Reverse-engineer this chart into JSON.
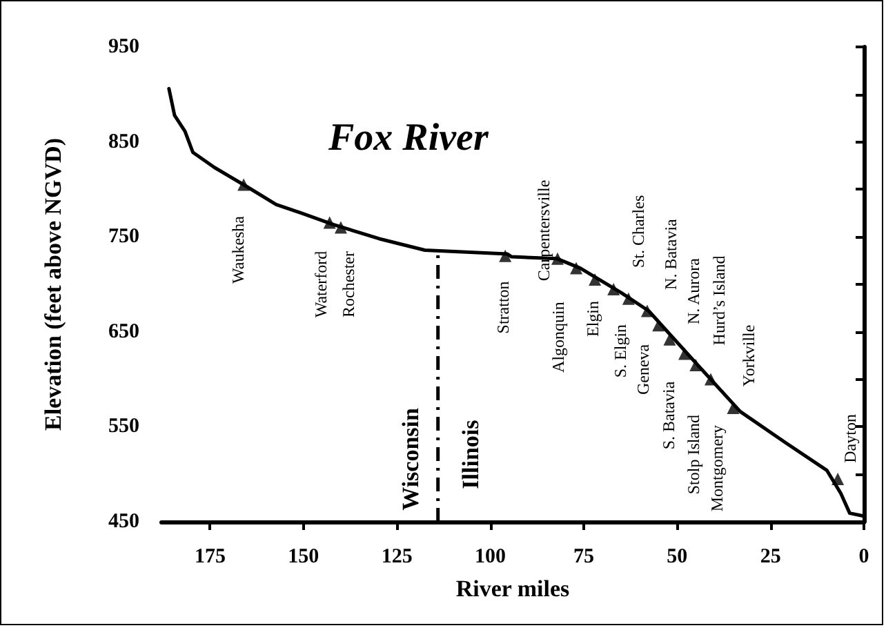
{
  "chart_data": {
    "type": "line",
    "title": "Fox River",
    "xlabel": "River miles",
    "ylabel": "Elevation (feet above NGVD)",
    "xlim": [
      188,
      0
    ],
    "xticks": [
      175,
      150,
      125,
      100,
      75,
      50,
      25,
      0
    ],
    "ylim": [
      450,
      950
    ],
    "yticks": [
      450,
      {
        "value": 500,
        "label": null
      },
      550,
      {
        "value": 600,
        "label": null
      },
      650,
      {
        "value": 700,
        "label": null
      },
      750,
      {
        "value": 800,
        "label": null
      },
      850,
      {
        "value": 900,
        "label": null
      },
      950
    ],
    "series": [
      {
        "color": "#000000",
        "marker": "none",
        "line_style": "solid",
        "x": [
          186,
          184.5,
          181.7,
          179.6,
          173.8,
          165.2,
          157.3,
          150.5,
          142,
          129.7,
          117.5,
          95.5,
          94.3,
          82.1,
          75.9,
          64.9,
          57.6,
          45.4,
          33.1,
          20.9,
          9.9,
          6.2,
          3.8,
          0.1
        ],
        "values": [
          906,
          878,
          861,
          839,
          823,
          803,
          784,
          775,
          763,
          748,
          736,
          732,
          729,
          727,
          717,
          691,
          672,
          619,
          566,
          533,
          504,
          480,
          459,
          456
        ]
      },
      {
        "type": "scatter",
        "color": "#000000",
        "marker": "triangle",
        "x": [
          166,
          143,
          140,
          96,
          82,
          77,
          72,
          67,
          63,
          58,
          55,
          52,
          48,
          45,
          41,
          35,
          7
        ],
        "values": [
          805,
          765,
          760,
          730,
          727,
          717,
          705,
          695,
          685,
          672,
          657,
          642,
          627,
          615,
          600,
          570,
          495
        ]
      }
    ],
    "ref_lines": [
      {
        "axis": "x",
        "value": 114,
        "color": "#000000",
        "line_style": "dashed"
      }
    ],
    "annotations": [
      "Waukesha",
      "Waterford",
      "Rochester",
      "Stratton",
      "Wisconsin",
      "Illinois",
      "Carpentersville",
      "Algonquin",
      "Elgin",
      "St. Charles",
      "S. Elgin",
      "Geneva",
      "N. Batavia",
      "N. Aurora",
      "Hurd’s Island",
      "S. Batavia",
      "Stolp Island",
      "Montgomery",
      "Yorkville",
      "Dayton"
    ],
    "grid": false
  }
}
